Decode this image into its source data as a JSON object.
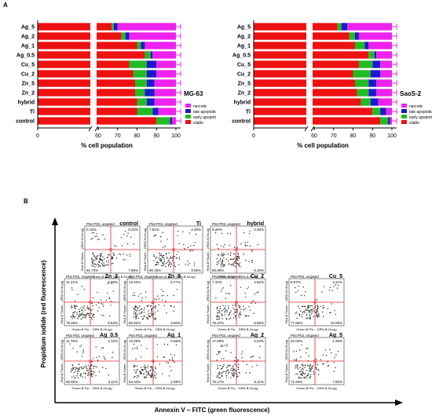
{
  "figure": {
    "panel_a_label": "A",
    "panel_b_label": "B",
    "flow_y_axis_label": "Propidium iodide (red fluorescence)",
    "flow_x_axis_label": "Annexin V – FITC (green fluorescence)"
  },
  "chart_data": [
    {
      "type": "bar",
      "orientation": "horizontal",
      "stacked": true,
      "cell_line": "MG-63",
      "xlabel": "% cell population",
      "axis_break": [
        5,
        55
      ],
      "xlim": [
        0,
        100
      ],
      "x_ticks": [
        "0",
        "60",
        "70",
        "80",
        "90",
        "100"
      ],
      "grid": false,
      "legend_position": "right",
      "categories": [
        "Ag_5",
        "Ag_2",
        "Ag_1",
        "Ag_0.5",
        "Cu_5",
        "Cu_2",
        "Zn_5",
        "Zn_2",
        "hybrid",
        "Ti",
        "control"
      ],
      "series": [
        {
          "name": "viable",
          "color": "#ee1111",
          "values": [
            67,
            72,
            80,
            84,
            76,
            78,
            79,
            79,
            80,
            80,
            90
          ]
        },
        {
          "name": "early apoptotic",
          "color": "#22bb22",
          "values": [
            1,
            2,
            2,
            3,
            9,
            7,
            6,
            5,
            5,
            8,
            7
          ]
        },
        {
          "name": "late apoptotic",
          "color": "#1a1acc",
          "values": [
            2,
            2,
            2,
            1,
            5,
            5,
            4,
            5,
            4,
            3,
            1
          ]
        },
        {
          "name": "necrotic",
          "color": "#ee22ee",
          "values": [
            30,
            24,
            16,
            12,
            10,
            10,
            11,
            11,
            11,
            9,
            2
          ]
        }
      ]
    },
    {
      "type": "bar",
      "orientation": "horizontal",
      "stacked": true,
      "cell_line": "SaoS-2",
      "xlabel": "% cell population",
      "axis_break": [
        5,
        55
      ],
      "xlim": [
        0,
        100
      ],
      "x_ticks": [
        "0",
        "60",
        "70",
        "80",
        "90",
        "100"
      ],
      "grid": false,
      "legend_position": "right",
      "categories": [
        "Ag_5",
        "Ag_2",
        "Ag_1",
        "Ag_0.5",
        "Cu_5",
        "Cu_2",
        "Zn_5",
        "Zn_2",
        "hybrid",
        "Ti",
        "control"
      ],
      "series": [
        {
          "name": "viable",
          "color": "#ee1111",
          "values": [
            72,
            78,
            81,
            88,
            83,
            80,
            81,
            82,
            84,
            90,
            94
          ]
        },
        {
          "name": "early apoptotic",
          "color": "#22bb22",
          "values": [
            2,
            3,
            5,
            3,
            7,
            9,
            7,
            6,
            5,
            4,
            4
          ]
        },
        {
          "name": "late apoptotic",
          "color": "#1a1acc",
          "values": [
            3,
            2,
            2,
            1,
            4,
            5,
            4,
            4,
            4,
            3,
            1
          ]
        },
        {
          "name": "necrotic",
          "color": "#ee22ee",
          "values": [
            23,
            17,
            12,
            8,
            6,
            6,
            8,
            8,
            7,
            3,
            1
          ]
        }
      ]
    },
    {
      "type": "scatter",
      "subtype": "flow-cytometry-quadrant-plots",
      "plot_header": "Plot P03, ungated",
      "x_axis_text": "Green-B Flu... GRN-B-HLog)",
      "y_axis_text": "Red-B Fluore... (RED-B-HLog)",
      "plots": [
        {
          "label": "control",
          "ul": "0.15%",
          "ur": "0.22%",
          "ll": "91.74%",
          "lr": "7.89%"
        },
        {
          "label": "Ti",
          "ul": "7.51%",
          "ur": "2.49%",
          "ll": "80.45%",
          "lr": "9.55%"
        },
        {
          "label": "hybrid",
          "ul": "9.26%",
          "ur": "3.36%",
          "ll": "80.08%",
          "lr": "6.33%"
        },
        {
          "label": "Zn_2",
          "ul": "11.21%",
          "ur": "3.90%",
          "ll": "75.26%",
          "lr": "9.63%"
        },
        {
          "label": "Zn_5",
          "ul": "13.42%",
          "ur": "5.77%",
          "ll": "80.92%",
          "lr": "3.90%"
        },
        {
          "label": "Cu_2",
          "ul": "7.42%",
          "ur": "4.62%",
          "ll": "79.37%",
          "lr": "8.58%"
        },
        {
          "label": "Cu_5",
          "ul": "9.07%",
          "ur": "3.12%",
          "ll": "77.55%",
          "lr": "10.06%"
        },
        {
          "label": "Ag_0.5",
          "ul": "11.75%",
          "ur": "2.32%",
          "ll": "82.82%",
          "lr": "3.11%"
        },
        {
          "label": "Ag_1",
          "ul": "13.00%",
          "ur": "0.58%",
          "ll": "84.34%",
          "lr": "2.09%"
        },
        {
          "label": "Ag_2",
          "ul": "17.69%",
          "ur": "2.03%",
          "ll": "75.17%",
          "lr": "5.11%"
        },
        {
          "label": "Ag_5",
          "ul": "20.02%",
          "ur": "2.49%",
          "ll": "71.94%",
          "lr": "7.55%"
        }
      ]
    }
  ]
}
